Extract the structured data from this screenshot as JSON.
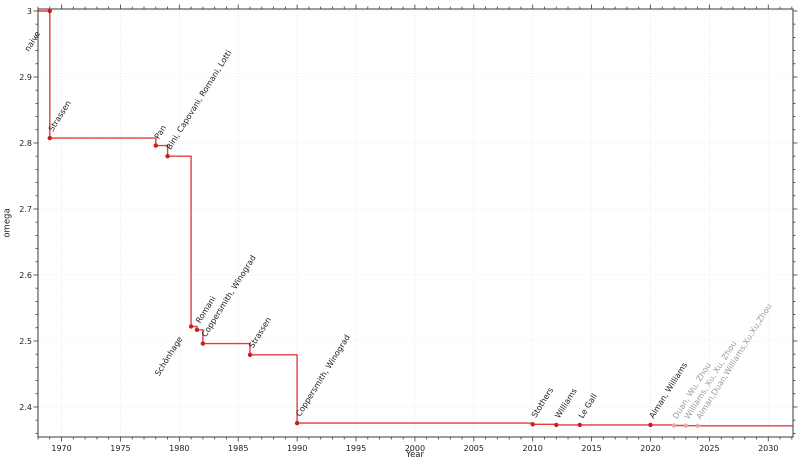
{
  "figure": {
    "description": "Step chart of the matrix multiplication exponent omega decreasing over time"
  },
  "colors": {
    "line": "#dd2428",
    "marker": "#c81e22",
    "recent_marker": "#f2a2a3",
    "label": "#222222",
    "recent_label": "#9b9b9b",
    "grid": "#e6e6e6",
    "axis": "#3a3a3a",
    "tick_label": "#1c1c1c",
    "background": "#ffffff"
  },
  "chart_data": {
    "type": "line",
    "subtype": "step-after",
    "title": "",
    "xlabel": "Year",
    "ylabel": "omega",
    "xlim": [
      1968.0,
      2032.1
    ],
    "ylim": [
      2.3545,
      3.003
    ],
    "x_major_ticks": [
      1970,
      1975,
      1980,
      1985,
      1990,
      1995,
      2000,
      2005,
      2010,
      2015,
      2020,
      2025,
      2030
    ],
    "x_minor_step": 1,
    "y_major_ticks": [
      2.4,
      2.5,
      2.6,
      2.7,
      2.8,
      2.9,
      3.0
    ],
    "y_minor_step": 0.02,
    "grid": "major-dotted",
    "legend": "none",
    "points": [
      {
        "label": "naive",
        "year": 1969,
        "omega": 3.0,
        "status": "established",
        "label_offset": [
          -21,
          41
        ]
      },
      {
        "label": "Strassen",
        "year": 1969,
        "omega": 2.8074,
        "status": "established"
      },
      {
        "label": "Pan",
        "year": 1978,
        "omega": 2.796,
        "status": "established"
      },
      {
        "label": "Bini, Capovani, Romani, Lotti",
        "year": 1979,
        "omega": 2.78,
        "status": "established"
      },
      {
        "label": "Schönhage",
        "year": 1981,
        "omega": 2.522,
        "status": "established",
        "label_offset": [
          -32,
          50
        ]
      },
      {
        "label": "Romani",
        "year": 1981.5,
        "omega": 2.517,
        "status": "established"
      },
      {
        "label": "Coppersmith, Winograd",
        "year": 1982,
        "omega": 2.496,
        "status": "established"
      },
      {
        "label": "Strassen",
        "year": 1986,
        "omega": 2.479,
        "status": "established"
      },
      {
        "label": "Coppersmith, Winograd",
        "year": 1990,
        "omega": 2.3755,
        "status": "established"
      },
      {
        "label": "Stothers",
        "year": 2010,
        "omega": 2.3737,
        "status": "established"
      },
      {
        "label": "Williams",
        "year": 2012,
        "omega": 2.3729,
        "status": "established"
      },
      {
        "label": "Le Gall",
        "year": 2014,
        "omega": 2.3729,
        "status": "established"
      },
      {
        "label": "Alman, Williams",
        "year": 2020,
        "omega": 2.3729,
        "status": "established"
      },
      {
        "label": "Duan, Wu, Zhou",
        "year": 2022,
        "omega": 2.3719,
        "status": "recent"
      },
      {
        "label": "Williams, Xu, Xu, Zhou",
        "year": 2023,
        "omega": 2.3716,
        "status": "recent"
      },
      {
        "label": "Alman,Duan,Williams,Xu,Xu,Zhou",
        "year": 2024,
        "omega": 2.3714,
        "status": "recent"
      }
    ]
  }
}
